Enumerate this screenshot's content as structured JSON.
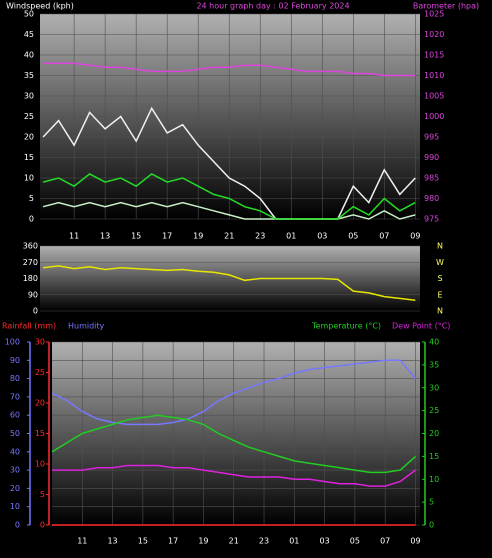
{
  "chart_data": [
    {
      "type": "line",
      "title": "24 hour graph day : 02 February 2024",
      "y_label": "Windspeed (kph)",
      "y2_label": "Barometer (hpa)",
      "x": [
        9,
        10,
        11,
        12,
        13,
        14,
        15,
        16,
        17,
        18,
        19,
        20,
        21,
        22,
        23,
        24,
        25,
        26,
        27,
        28,
        29,
        30,
        31,
        32,
        33
      ],
      "xlim": [
        8.8,
        33.3
      ],
      "xticks": [
        11,
        13,
        15,
        17,
        19,
        21,
        23,
        {
          "value": 25,
          "label": "01"
        },
        {
          "value": 27,
          "label": "03"
        },
        {
          "value": 29,
          "label": "05"
        },
        {
          "value": 31,
          "label": "07"
        },
        {
          "value": 33,
          "label": "09"
        }
      ],
      "ylim": [
        0,
        50
      ],
      "yticks": [
        0,
        5,
        10,
        15,
        20,
        25,
        30,
        35,
        40,
        45,
        50
      ],
      "y2lim": [
        975,
        1025
      ],
      "y2ticks": [
        975,
        980,
        985,
        990,
        995,
        1000,
        1005,
        1010,
        1015,
        1020,
        1025
      ],
      "grid": true,
      "series": [
        {
          "color": "#f0f0f0",
          "values": [
            20,
            24,
            18,
            26,
            22,
            25,
            19,
            27,
            21,
            23,
            18,
            14,
            10,
            8,
            5,
            0,
            0,
            0,
            0,
            0,
            8,
            4,
            12,
            6,
            10
          ]
        },
        {
          "color": "#c8f0c8",
          "values": [
            3,
            4,
            3,
            4,
            3,
            4,
            3,
            4,
            3,
            4,
            3,
            2,
            1,
            0,
            0,
            0,
            0,
            0,
            0,
            0,
            1,
            0,
            2,
            0,
            1
          ]
        },
        {
          "color": "#22dd22",
          "values": [
            9,
            10,
            8,
            11,
            9,
            10,
            8,
            11,
            9,
            10,
            8,
            6,
            5,
            3,
            2,
            0,
            0,
            0,
            0,
            0,
            3,
            1,
            5,
            2,
            4
          ]
        },
        {
          "color": "#dd44dd",
          "axis": "y2",
          "values": [
            1013,
            1013,
            1013,
            1012.5,
            1012,
            1012,
            1011.5,
            1011,
            1011,
            1011,
            1011.5,
            1012,
            1012,
            1012.5,
            1012.5,
            1012,
            1011.5,
            1011,
            1011,
            1011,
            1010.5,
            1010.5,
            1010,
            1010,
            1010
          ]
        }
      ]
    },
    {
      "type": "line",
      "x": [
        9,
        10,
        11,
        12,
        13,
        14,
        15,
        16,
        17,
        18,
        19,
        20,
        21,
        22,
        23,
        24,
        25,
        26,
        27,
        28,
        29,
        30,
        31,
        32,
        33
      ],
      "xlim": [
        8.8,
        33.3
      ],
      "ylim": [
        0,
        360
      ],
      "yticks": [
        0,
        90,
        180,
        270,
        360
      ],
      "y2lim": [
        0,
        360
      ],
      "y2ticks": [
        {
          "value": 360,
          "label": "N"
        },
        {
          "value": 270,
          "label": "W"
        },
        {
          "value": 180,
          "label": "S"
        },
        {
          "value": 90,
          "label": "E"
        },
        {
          "value": 0,
          "label": "N"
        }
      ],
      "grid": true,
      "series": [
        {
          "color": "#e6e600",
          "values": [
            240,
            250,
            235,
            245,
            230,
            240,
            235,
            230,
            225,
            230,
            220,
            215,
            200,
            170,
            180,
            180,
            180,
            180,
            180,
            175,
            110,
            100,
            80,
            70,
            60
          ]
        }
      ]
    },
    {
      "type": "line",
      "x": [
        9,
        10,
        11,
        12,
        13,
        14,
        15,
        16,
        17,
        18,
        19,
        20,
        21,
        22,
        23,
        24,
        25,
        26,
        27,
        28,
        29,
        30,
        31,
        32,
        33
      ],
      "xlim": [
        9.0,
        33.3
      ],
      "xticks": [
        11,
        13,
        15,
        17,
        19,
        21,
        23,
        {
          "value": 25,
          "label": "01"
        },
        {
          "value": 27,
          "label": "03"
        },
        {
          "value": 29,
          "label": "05"
        },
        {
          "value": 31,
          "label": "07"
        },
        {
          "value": 33,
          "label": "09"
        }
      ],
      "ylim": [
        0,
        100
      ],
      "yticks": [
        0,
        10,
        20,
        30,
        40,
        50,
        60,
        70,
        80,
        90,
        100
      ],
      "y2lim": [
        0,
        30
      ],
      "y2ticks": [
        0,
        5,
        10,
        15,
        20,
        25,
        30
      ],
      "y3lim": [
        0,
        40
      ],
      "y3ticks": [
        0,
        5,
        10,
        15,
        20,
        25,
        30,
        35,
        40
      ],
      "grid": true,
      "series": [
        {
          "name": "Rainfall (mm)",
          "color": "#ff2a2a",
          "axis": "y2",
          "values": [
            0,
            0,
            0,
            0,
            0,
            0,
            0,
            0,
            0,
            0,
            0,
            0,
            0,
            0,
            0,
            0,
            0,
            0,
            0,
            0,
            0,
            0,
            0,
            0,
            0
          ]
        },
        {
          "name": "Humidity",
          "color": "#7777ff",
          "axis": "y",
          "values": [
            72,
            68,
            62,
            58,
            56,
            55,
            55,
            55,
            56,
            58,
            62,
            68,
            72,
            75,
            78,
            80,
            83,
            85,
            86,
            87,
            88,
            89,
            90,
            90,
            80
          ]
        },
        {
          "name": "Temperature (°C)",
          "color": "#22cc22",
          "axis": "y3",
          "values": [
            16,
            18,
            20,
            21,
            22,
            23,
            23.5,
            24,
            23.5,
            23,
            22,
            20,
            18.5,
            17,
            16,
            15,
            14,
            13.5,
            13,
            12.5,
            12,
            11.5,
            11.5,
            12,
            15
          ]
        },
        {
          "name": "Dew Point (°C)",
          "color": "#dd22dd",
          "axis": "y3",
          "values": [
            12,
            12,
            12,
            12.5,
            12.5,
            13,
            13,
            13,
            12.5,
            12.5,
            12,
            11.5,
            11,
            10.5,
            10.5,
            10.5,
            10,
            10,
            9.5,
            9,
            9,
            8.5,
            8.5,
            9.5,
            12
          ]
        }
      ]
    }
  ]
}
